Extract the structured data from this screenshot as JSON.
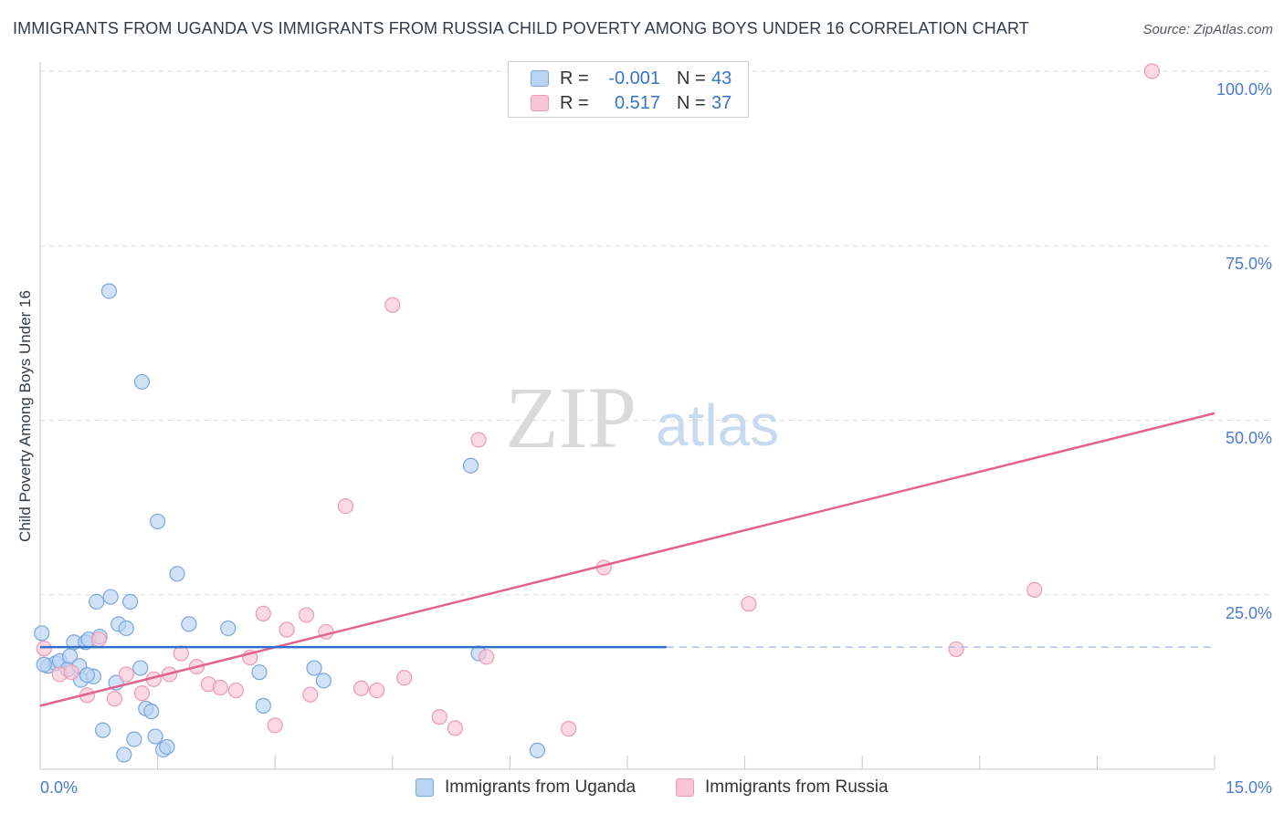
{
  "title": "IMMIGRANTS FROM UGANDA VS IMMIGRANTS FROM RUSSIA CHILD POVERTY AMONG BOYS UNDER 16 CORRELATION CHART",
  "source": "Source: ZipAtlas.com",
  "watermark": {
    "zip": "ZIP",
    "atlas": "atlas"
  },
  "legend": {
    "uganda": {
      "r_label": "R =",
      "r_value": "-0.001",
      "n_label": "N =",
      "n_value": "43"
    },
    "russia": {
      "r_label": "R =",
      "r_value": "0.517",
      "n_label": "N =",
      "n_value": "37"
    }
  },
  "colors": {
    "uganda_fill": "#b9d3f2",
    "uganda_stroke": "#7aa6dc",
    "uganda_line": "#2f6fcb",
    "russia_fill": "#f8c5d5",
    "russia_stroke": "#ec9ab4",
    "russia_line": "#e0628f",
    "grid": "#d9d9d9",
    "tick_label": "#4a7cc9"
  },
  "chart_data": {
    "type": "scatter",
    "title": "IMMIGRANTS FROM UGANDA VS IMMIGRANTS FROM RUSSIA CHILD POVERTY AMONG BOYS UNDER 16 CORRELATION CHART",
    "xlabel": "",
    "ylabel": "Child Poverty Among Boys Under 16",
    "xlim": [
      0,
      15
    ],
    "ylim": [
      0,
      102
    ],
    "x_tick_labels": [
      {
        "value": 0,
        "label": "0.0%"
      },
      {
        "value": 15,
        "label": "15.0%"
      }
    ],
    "y_tick_labels": [
      {
        "value": 25,
        "label": "25.0%"
      },
      {
        "value": 50,
        "label": "50.0%"
      },
      {
        "value": 75,
        "label": "75.0%"
      },
      {
        "value": 100,
        "label": "100.0%"
      }
    ],
    "series": [
      {
        "name": "Immigrants from Uganda",
        "color": "uganda",
        "points": [
          [
            0.02,
            19.5
          ],
          [
            0.1,
            14.8
          ],
          [
            0.2,
            15.2
          ],
          [
            0.25,
            15.5
          ],
          [
            0.35,
            14.3
          ],
          [
            0.38,
            16.2
          ],
          [
            0.43,
            18.2
          ],
          [
            0.5,
            14.8
          ],
          [
            0.52,
            12.8
          ],
          [
            0.58,
            18.2
          ],
          [
            0.62,
            18.6
          ],
          [
            0.68,
            13.3
          ],
          [
            0.72,
            24.0
          ],
          [
            0.76,
            19.0
          ],
          [
            0.8,
            5.6
          ],
          [
            0.88,
            68.5
          ],
          [
            0.9,
            24.7
          ],
          [
            0.97,
            12.4
          ],
          [
            1.0,
            20.8
          ],
          [
            1.07,
            2.1
          ],
          [
            1.1,
            20.2
          ],
          [
            1.15,
            24.0
          ],
          [
            1.2,
            4.3
          ],
          [
            1.28,
            14.5
          ],
          [
            1.3,
            55.5
          ],
          [
            1.35,
            8.7
          ],
          [
            1.42,
            8.3
          ],
          [
            1.47,
            4.7
          ],
          [
            1.5,
            35.5
          ],
          [
            1.57,
            2.8
          ],
          [
            1.62,
            3.2
          ],
          [
            1.75,
            28.0
          ],
          [
            1.9,
            20.8
          ],
          [
            2.4,
            20.2
          ],
          [
            2.8,
            13.9
          ],
          [
            2.85,
            9.1
          ],
          [
            3.5,
            14.5
          ],
          [
            3.62,
            12.7
          ],
          [
            5.5,
            43.5
          ],
          [
            5.6,
            16.6
          ],
          [
            6.35,
            2.7
          ],
          [
            0.05,
            15.0
          ],
          [
            0.6,
            13.5
          ]
        ],
        "trend": {
          "x": [
            0,
            8
          ],
          "y": [
            17.5,
            17.5
          ],
          "dashed_extension": {
            "x": [
              8,
              15
            ],
            "y": [
              17.5,
              17.5
            ]
          }
        }
      },
      {
        "name": "Immigrants from Russia",
        "color": "russia",
        "points": [
          [
            0.05,
            17.3
          ],
          [
            0.25,
            13.6
          ],
          [
            0.4,
            13.9
          ],
          [
            0.6,
            10.6
          ],
          [
            0.75,
            18.6
          ],
          [
            0.95,
            10.1
          ],
          [
            1.1,
            13.6
          ],
          [
            1.3,
            10.9
          ],
          [
            1.45,
            12.9
          ],
          [
            1.65,
            13.6
          ],
          [
            1.8,
            16.6
          ],
          [
            2.0,
            14.7
          ],
          [
            2.15,
            12.2
          ],
          [
            2.3,
            11.7
          ],
          [
            2.5,
            11.3
          ],
          [
            2.68,
            16.0
          ],
          [
            2.85,
            22.3
          ],
          [
            3.0,
            6.3
          ],
          [
            3.15,
            20.0
          ],
          [
            3.4,
            22.1
          ],
          [
            3.45,
            10.7
          ],
          [
            3.65,
            19.7
          ],
          [
            3.9,
            37.7
          ],
          [
            4.1,
            11.6
          ],
          [
            4.3,
            11.3
          ],
          [
            4.5,
            66.5
          ],
          [
            4.65,
            13.1
          ],
          [
            5.1,
            7.5
          ],
          [
            5.3,
            5.9
          ],
          [
            5.6,
            47.2
          ],
          [
            5.7,
            16.1
          ],
          [
            6.75,
            5.8
          ],
          [
            7.2,
            28.9
          ],
          [
            9.05,
            23.7
          ],
          [
            11.7,
            17.2
          ],
          [
            12.7,
            25.7
          ],
          [
            14.2,
            100.0
          ]
        ],
        "trend": {
          "x": [
            0,
            15
          ],
          "y": [
            9.1,
            51.0
          ]
        }
      }
    ]
  }
}
